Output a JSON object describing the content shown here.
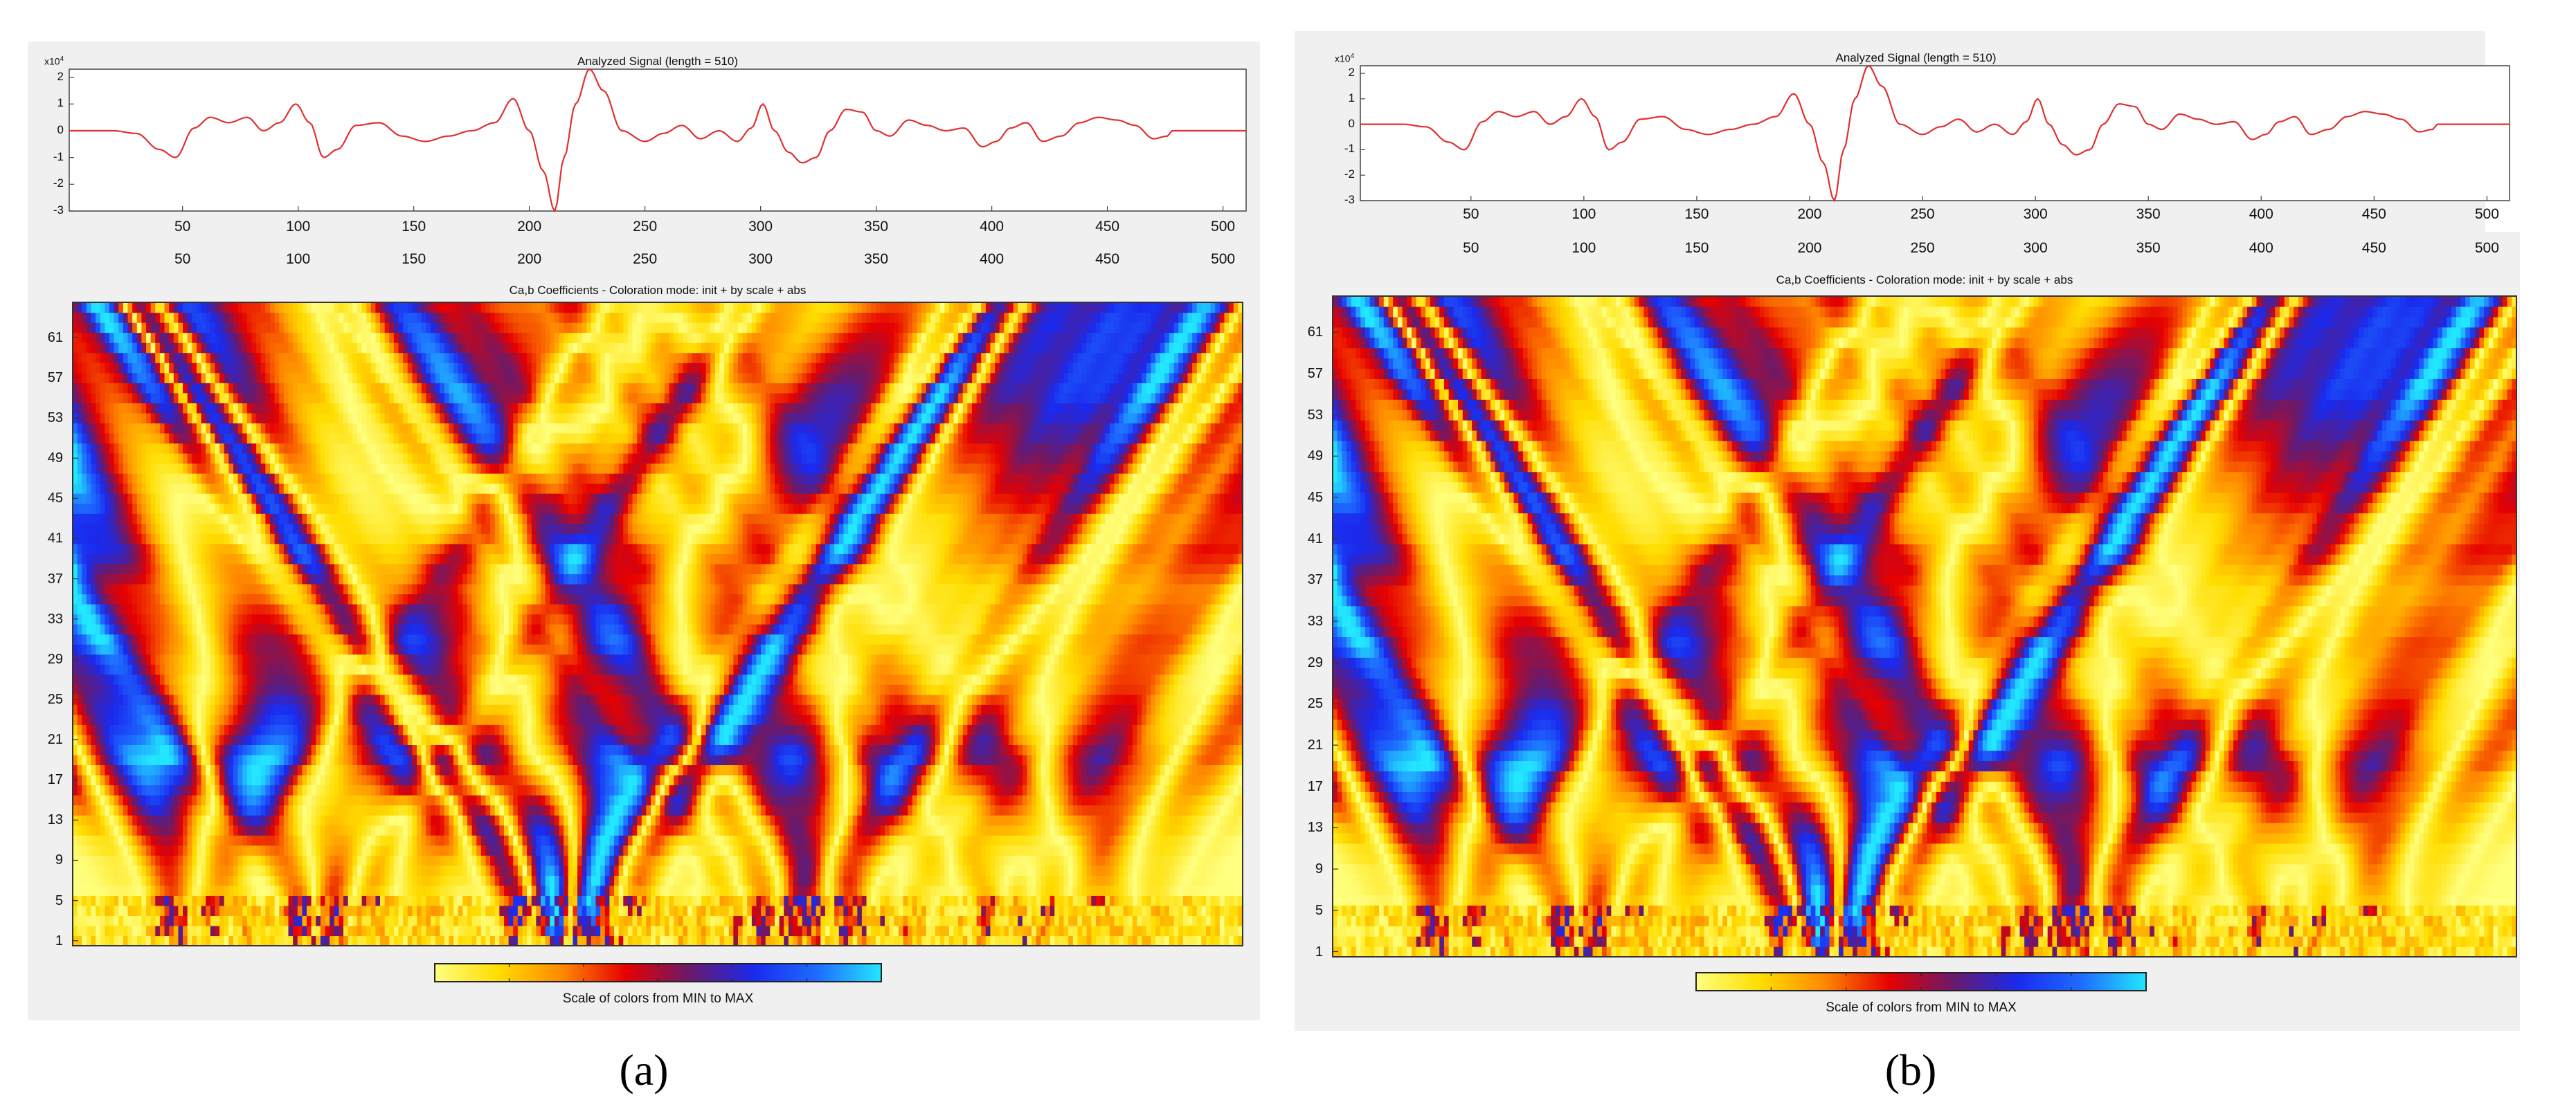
{
  "colors": {
    "signal_line": "#e03030",
    "panel_bg": "#f0f0f0",
    "colormap": [
      "#ffff80",
      "#ffdd00",
      "#ff8800",
      "#e60000",
      "#6a1a6a",
      "#1a2aee",
      "#1e6cff",
      "#22e8ff"
    ]
  },
  "chart_data": [
    {
      "type": "line",
      "panel_caption": "(a)",
      "title": "Analyzed Signal (length = 510)",
      "y_exponent": "x10",
      "y_exponent_power": "4",
      "xlim": [
        1,
        510
      ],
      "ylim": [
        -3,
        2.3
      ],
      "x_ticks": [
        50,
        100,
        150,
        200,
        250,
        300,
        350,
        400,
        450,
        500
      ],
      "y_ticks": [
        2,
        1,
        0,
        -1,
        -2,
        -3
      ],
      "y_tick_labels": [
        "2",
        "1",
        "0",
        "-1",
        "-2",
        "-3"
      ],
      "x_tick_labels": [
        "50",
        "100",
        "150",
        "200",
        "250",
        "300",
        "350",
        "400",
        "450",
        "500"
      ],
      "second_x_tick_labels": [
        "50",
        "100",
        "150",
        "200",
        "250",
        "300",
        "350",
        "400",
        "450",
        "500"
      ],
      "series": [
        {
          "name": "signal",
          "x": [
            1,
            20,
            30,
            40,
            47,
            55,
            62,
            70,
            78,
            85,
            92,
            99,
            105,
            111,
            117,
            125,
            135,
            145,
            155,
            165,
            175,
            185,
            193,
            200,
            206,
            211,
            215,
            220,
            226,
            232,
            240,
            250,
            258,
            266,
            274,
            282,
            290,
            296,
            301,
            306,
            312,
            318,
            324,
            330,
            337,
            344,
            350,
            356,
            364,
            372,
            380,
            388,
            396,
            402,
            408,
            415,
            422,
            430,
            438,
            446,
            454,
            462,
            470,
            476,
            478,
            490,
            510
          ],
          "y": [
            0,
            0,
            -0.1,
            -0.7,
            -1.0,
            0.1,
            0.5,
            0.3,
            0.5,
            0,
            0.3,
            1.0,
            0.3,
            -1.0,
            -0.7,
            0.2,
            0.3,
            -0.2,
            -0.4,
            -0.2,
            0,
            0.3,
            1.2,
            0,
            -1.5,
            -3.0,
            -1.0,
            1.0,
            2.3,
            1.5,
            0,
            -0.4,
            -0.1,
            0.2,
            -0.3,
            0,
            -0.4,
            0.1,
            1.0,
            0,
            -0.8,
            -1.2,
            -1.0,
            0,
            0.8,
            0.7,
            0,
            -0.2,
            0.4,
            0.2,
            0,
            0.1,
            -0.6,
            -0.4,
            0.1,
            0.3,
            -0.4,
            -0.2,
            0.3,
            0.5,
            0.4,
            0.2,
            -0.3,
            -0.2,
            0,
            0,
            0
          ]
        }
      ]
    },
    {
      "type": "heatmap",
      "panel_caption": "(a)",
      "title": "Ca,b Coefficients - Coloration mode: init + by scale + abs",
      "xlabel": "",
      "ylabel": "",
      "xlim": [
        1,
        510
      ],
      "scale_range": [
        1,
        64
      ],
      "y_tick_labels": [
        "61",
        "57",
        "53",
        "49",
        "45",
        "41",
        "37",
        "33",
        "29",
        "25",
        "21",
        "17",
        "13",
        "9",
        "5",
        "1"
      ],
      "y_ticks": [
        61,
        57,
        53,
        49,
        45,
        41,
        37,
        33,
        29,
        25,
        21,
        17,
        13,
        9,
        5,
        1
      ],
      "colorbar_label": "Scale of colors from MIN to MAX"
    },
    {
      "type": "line",
      "panel_caption": "(b)",
      "title": "Analyzed Signal (length = 510)",
      "y_exponent": "x10",
      "y_exponent_power": "4",
      "xlim": [
        1,
        510
      ],
      "ylim": [
        -3,
        2.3
      ],
      "x_ticks": [
        50,
        100,
        150,
        200,
        250,
        300,
        350,
        400,
        450,
        500
      ],
      "y_ticks": [
        2,
        1,
        0,
        -1,
        -2,
        -3
      ],
      "y_tick_labels": [
        "2",
        "1",
        "0",
        "-1",
        "-2",
        "-3"
      ],
      "x_tick_labels": [
        "50",
        "100",
        "150",
        "200",
        "250",
        "300",
        "350",
        "400",
        "450",
        "500"
      ],
      "second_x_tick_labels": [
        "50",
        "100",
        "150",
        "200",
        "250",
        "300",
        "350",
        "400",
        "450",
        "500"
      ],
      "series": [
        {
          "name": "signal",
          "x": [
            1,
            20,
            30,
            40,
            47,
            55,
            62,
            70,
            78,
            85,
            92,
            99,
            105,
            111,
            117,
            125,
            135,
            145,
            155,
            165,
            175,
            185,
            193,
            200,
            206,
            211,
            215,
            220,
            226,
            232,
            240,
            250,
            258,
            266,
            274,
            282,
            290,
            296,
            301,
            306,
            312,
            318,
            324,
            330,
            337,
            344,
            350,
            356,
            364,
            372,
            380,
            388,
            396,
            402,
            408,
            415,
            422,
            430,
            438,
            446,
            454,
            462,
            470,
            476,
            478,
            490,
            510
          ],
          "y": [
            0,
            0,
            -0.1,
            -0.7,
            -1.0,
            0.1,
            0.5,
            0.3,
            0.5,
            0,
            0.3,
            1.0,
            0.3,
            -1.0,
            -0.7,
            0.2,
            0.3,
            -0.2,
            -0.4,
            -0.2,
            0,
            0.3,
            1.2,
            0,
            -1.5,
            -3.0,
            -1.0,
            1.0,
            2.3,
            1.5,
            0,
            -0.4,
            -0.1,
            0.2,
            -0.3,
            0,
            -0.4,
            0.1,
            1.0,
            0,
            -0.8,
            -1.2,
            -1.0,
            0,
            0.8,
            0.7,
            0,
            -0.2,
            0.4,
            0.2,
            0,
            0.1,
            -0.6,
            -0.4,
            0.1,
            0.3,
            -0.4,
            -0.2,
            0.3,
            0.5,
            0.4,
            0.2,
            -0.3,
            -0.2,
            0,
            0,
            0
          ]
        }
      ]
    },
    {
      "type": "heatmap",
      "panel_caption": "(b)",
      "title": "Ca,b Coefficients - Coloration mode: init + by scale + abs",
      "xlabel": "",
      "ylabel": "",
      "xlim": [
        1,
        510
      ],
      "scale_range": [
        1,
        64
      ],
      "y_tick_labels": [
        "61",
        "57",
        "53",
        "49",
        "45",
        "41",
        "37",
        "33",
        "29",
        "25",
        "21",
        "17",
        "13",
        "9",
        "5",
        "1"
      ],
      "y_ticks": [
        61,
        57,
        53,
        49,
        45,
        41,
        37,
        33,
        29,
        25,
        21,
        17,
        13,
        9,
        5,
        1
      ],
      "colorbar_label": "Scale of colors from MIN to MAX"
    }
  ]
}
